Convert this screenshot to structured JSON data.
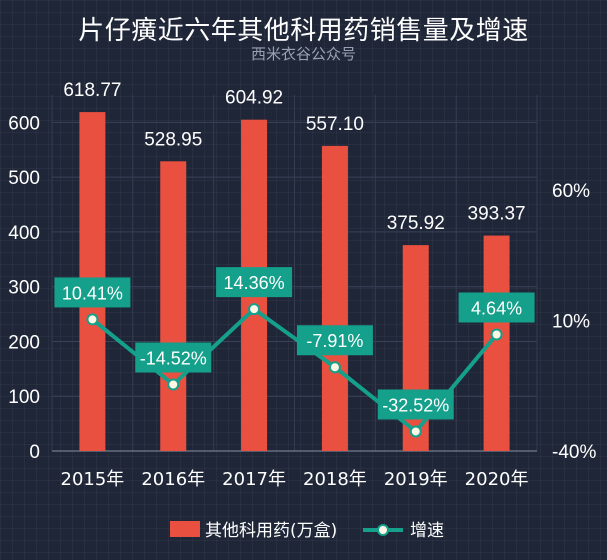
{
  "chart_data": {
    "type": "bar",
    "title": "片仔癀近六年其他科用药销售量及增速",
    "subtitle": "西米衣谷公众号",
    "categories": [
      "2015年",
      "2016年",
      "2017年",
      "2018年",
      "2019年",
      "2020年"
    ],
    "series": [
      {
        "name": "其他科用药(万盒)",
        "type": "bar",
        "axis": "left",
        "color": "#ea5040",
        "values": [
          618.77,
          528.95,
          604.92,
          557.1,
          375.92,
          393.37
        ],
        "value_labels": [
          "618.77",
          "528.95",
          "604.92",
          "557.10",
          "375.92",
          "393.37"
        ]
      },
      {
        "name": "增速",
        "type": "line",
        "axis": "right",
        "color": "#14a08a",
        "values": [
          10.41,
          -14.52,
          14.36,
          -7.91,
          -32.52,
          4.64
        ],
        "value_labels": [
          "10.41%",
          "-14.52%",
          "14.36%",
          "-7.91%",
          "-32.52%",
          "4.64%"
        ]
      }
    ],
    "y_left": {
      "ylim": [
        0,
        650
      ],
      "ticks": [
        0,
        100,
        200,
        300,
        400,
        500,
        600
      ],
      "tick_labels": [
        "0",
        "100",
        "200",
        "300",
        "400",
        "500",
        "600"
      ]
    },
    "y_right": {
      "ylim": [
        -40,
        60
      ],
      "ticks": [
        -40,
        10,
        60
      ],
      "tick_labels": [
        "-40%",
        "10%",
        "60%"
      ]
    },
    "xlabel": "",
    "ylabel": "",
    "grid": true,
    "legend": "bottom"
  }
}
